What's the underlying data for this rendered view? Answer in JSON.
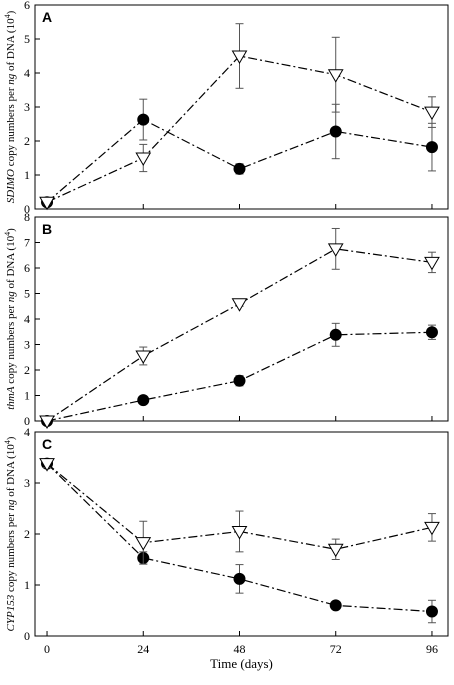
{
  "chart_data": [
    {
      "type": "line",
      "panel_label": "A",
      "ylabel_prefix": "SDIMO",
      "ylabel_text": " copy numbers per ",
      "ylabel_ng": "ng",
      "ylabel_suffix": " of DNA (10",
      "ylabel_sup": "4",
      "ylabel_close": ")",
      "x": [
        0,
        24,
        48,
        72,
        96
      ],
      "ylim": [
        0,
        6
      ],
      "yticks": [
        "0",
        "1",
        "2",
        "3",
        "4",
        "5",
        "6"
      ],
      "series": [
        {
          "marker": "filled-circle",
          "values": [
            0.2,
            2.63,
            1.18,
            2.28,
            1.82
          ],
          "err": [
            0.05,
            0.6,
            0.15,
            0.8,
            0.7
          ]
        },
        {
          "marker": "open-triangle-down",
          "values": [
            0.2,
            1.5,
            4.5,
            3.95,
            2.85
          ],
          "err": [
            0.05,
            0.4,
            0.95,
            1.1,
            0.45
          ]
        }
      ]
    },
    {
      "type": "line",
      "panel_label": "B",
      "ylabel_prefix": "thmA",
      "ylabel_text": " copy numbers per ",
      "ylabel_ng": "ng",
      "ylabel_suffix": " of DNA (10",
      "ylabel_sup": "4",
      "ylabel_close": ")",
      "x": [
        0,
        24,
        48,
        72,
        96
      ],
      "ylim": [
        0,
        8
      ],
      "yticks": [
        "0",
        "1",
        "2",
        "3",
        "4",
        "5",
        "6",
        "7",
        "8"
      ],
      "series": [
        {
          "marker": "filled-circle",
          "values": [
            0.0,
            0.82,
            1.58,
            3.38,
            3.48
          ],
          "err": [
            0.03,
            0.1,
            0.2,
            0.45,
            0.28
          ]
        },
        {
          "marker": "open-triangle-down",
          "values": [
            0.0,
            2.55,
            4.6,
            6.75,
            6.22
          ],
          "err": [
            0.03,
            0.35,
            0.1,
            0.8,
            0.4
          ]
        }
      ]
    },
    {
      "type": "line",
      "panel_label": "C",
      "ylabel_prefix": "CYP153",
      "ylabel_text": " copy numbers per ",
      "ylabel_ng": "ng",
      "ylabel_suffix": " of DNA (10",
      "ylabel_sup": "4",
      "ylabel_close": ")",
      "x": [
        0,
        24,
        48,
        72,
        96
      ],
      "ylim": [
        0,
        4
      ],
      "yticks": [
        "0",
        "1",
        "2",
        "3",
        "4"
      ],
      "xticks": [
        "0",
        "24",
        "48",
        "72",
        "96"
      ],
      "xlabel": "Time (days)",
      "series": [
        {
          "marker": "filled-circle",
          "values": [
            3.38,
            1.53,
            1.12,
            0.6,
            0.48
          ],
          "err": [
            0.08,
            0.12,
            0.28,
            0.05,
            0.22
          ]
        },
        {
          "marker": "open-triangle-down",
          "values": [
            3.38,
            1.83,
            2.05,
            1.7,
            2.13
          ],
          "err": [
            0.08,
            0.42,
            0.4,
            0.2,
            0.27
          ]
        }
      ]
    }
  ]
}
